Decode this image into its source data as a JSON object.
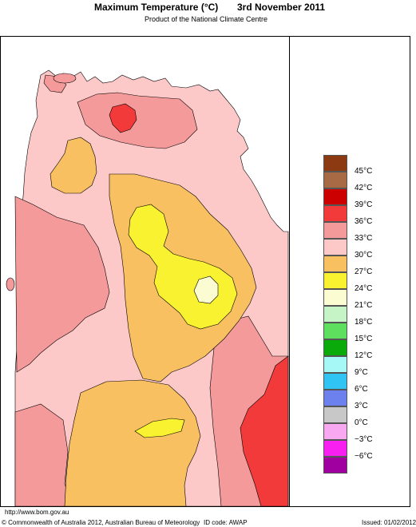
{
  "header": {
    "title_left": "Maximum Temperature (°C)",
    "title_right": "3rd November 2011",
    "subtitle": "Product of the National Climate Centre"
  },
  "legend": {
    "items": [
      {
        "label": "45°C",
        "color": "#8b3a12"
      },
      {
        "label": "42°C",
        "color": "#a86a45"
      },
      {
        "label": "39°C",
        "color": "#cc0000"
      },
      {
        "label": "36°C",
        "color": "#f23a3a"
      },
      {
        "label": "33°C",
        "color": "#f59a9a"
      },
      {
        "label": "30°C",
        "color": "#fcc8c8"
      },
      {
        "label": "27°C",
        "color": "#f8c060"
      },
      {
        "label": "24°C",
        "color": "#f8f230"
      },
      {
        "label": "21°C",
        "color": "#fcfcd2"
      },
      {
        "label": "18°C",
        "color": "#c6f4c6"
      },
      {
        "label": "15°C",
        "color": "#5ee05e"
      },
      {
        "label": "12°C",
        "color": "#0aaa0a"
      },
      {
        "label": "9°C",
        "color": "#a6f8f6"
      },
      {
        "label": "6°C",
        "color": "#30c4f4"
      },
      {
        "label": "3°C",
        "color": "#6c80ee"
      },
      {
        "label": "0°C",
        "color": "#c8c8c8"
      },
      {
        "label": "−3°C",
        "color": "#f8a8f0"
      },
      {
        "label": "−6°C",
        "color": "#f820f0"
      },
      {
        "label": "",
        "color": "#a000a0"
      }
    ]
  },
  "map_colors": {
    "ocean": "#ffffff",
    "c30": "#fcc8c8",
    "c33": "#f59a9a",
    "c36": "#f23a3a",
    "c27": "#f8c060",
    "c24": "#f8f230",
    "c21": "#fcfcd2"
  },
  "footer": {
    "url": "http://www.bom.gov.au",
    "copyright": "© Commonwealth of Australia 2012, Australian Bureau of Meteorology",
    "id_code": "ID code: AWAP",
    "issued": "Issued: 01/02/2012"
  }
}
